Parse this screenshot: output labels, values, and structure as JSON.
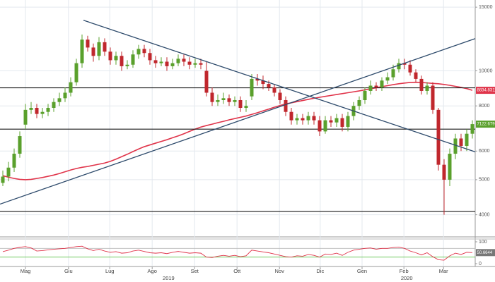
{
  "chart_data": [
    {
      "type": "candlestick",
      "xlim": [
        -0.5,
        83.5
      ],
      "xticks": [
        {
          "value": 4,
          "label": "Mag"
        },
        {
          "value": 11.6,
          "label": "Giu"
        },
        {
          "value": 18.9,
          "label": "Lug"
        },
        {
          "value": 26.4,
          "label": "Ago"
        },
        {
          "value": 33.9,
          "label": "Set"
        },
        {
          "value": 41.4,
          "label": "Ott"
        },
        {
          "value": 48.9,
          "label": "Nov"
        },
        {
          "value": 56.1,
          "label": "Dic"
        },
        {
          "value": 63.5,
          "label": "Gen"
        },
        {
          "value": 70.9,
          "label": "Feb"
        },
        {
          "value": 77.9,
          "label": "Mar"
        }
      ],
      "year_labels": [
        {
          "value": 29.3,
          "label": "2019"
        },
        {
          "value": 71.4,
          "label": "2020"
        }
      ],
      "ylim": [
        3490,
        15700
      ],
      "log_scale": true,
      "yticks": [
        4000,
        5000,
        6000,
        8000,
        10000,
        15000
      ],
      "grid": true,
      "up_color": "#5aa02c",
      "down_color": "#c0272d",
      "open": [
        4900,
        5100,
        5400,
        5900,
        7100,
        7800,
        7900,
        7600,
        7700,
        7900,
        8200,
        8400,
        8700,
        9300,
        10500,
        12200,
        11600,
        11000,
        12000,
        11300,
        10700,
        11000,
        10300,
        10400,
        11100,
        11500,
        11200,
        10700,
        10500,
        10600,
        10300,
        10500,
        10800,
        10600,
        10400,
        10500,
        10000,
        8700,
        8200,
        8300,
        8400,
        8200,
        8300,
        7900,
        8500,
        9500,
        9400,
        9200,
        9000,
        8700,
        8300,
        7700,
        7300,
        7400,
        7300,
        7500,
        7300,
        6800,
        7300,
        7200,
        7400,
        7000,
        7500,
        8000,
        8300,
        8800,
        9100,
        9000,
        9400,
        9600,
        10100,
        10500,
        10400,
        9900,
        9500,
        8800,
        9100,
        7800,
        5500,
        5000,
        5900,
        6500,
        6200,
        6700
      ],
      "high": [
        5300,
        5600,
        6100,
        6800,
        8100,
        8200,
        8100,
        7900,
        8100,
        8400,
        8700,
        9000,
        9600,
        10800,
        12600,
        12500,
        11900,
        12400,
        12300,
        11600,
        11300,
        11300,
        10700,
        11400,
        11800,
        11800,
        11500,
        11000,
        10900,
        10900,
        10800,
        11100,
        11100,
        10900,
        10800,
        10800,
        10600,
        9000,
        8600,
        8700,
        8600,
        8500,
        8500,
        8300,
        9800,
        9800,
        9700,
        9400,
        9200,
        8900,
        8500,
        7900,
        7600,
        7600,
        7700,
        7700,
        7500,
        7500,
        7500,
        7600,
        7600,
        7700,
        8200,
        8500,
        9000,
        9400,
        9300,
        9600,
        9900,
        10400,
        10800,
        10800,
        10700,
        10100,
        9700,
        9300,
        9300,
        7900,
        5700,
        6100,
        6700,
        6700,
        6900,
        7300
      ],
      "low": [
        4800,
        4950,
        5250,
        5750,
        6900,
        7600,
        7400,
        7400,
        7500,
        7700,
        8000,
        8200,
        8500,
        9100,
        10200,
        11300,
        10600,
        10700,
        11000,
        10400,
        10400,
        10000,
        10100,
        10200,
        10800,
        10900,
        10400,
        10200,
        10300,
        10000,
        10100,
        10300,
        10300,
        10100,
        10200,
        10100,
        8500,
        8000,
        8000,
        8100,
        8000,
        8000,
        7700,
        7700,
        8300,
        9100,
        8900,
        8800,
        8500,
        8100,
        7500,
        7100,
        7100,
        7100,
        7100,
        7100,
        6600,
        6700,
        7000,
        7000,
        6800,
        6800,
        7300,
        7800,
        8100,
        8600,
        8800,
        8800,
        9200,
        9400,
        9900,
        10100,
        9700,
        9300,
        8600,
        8600,
        7600,
        5300,
        4000,
        4800,
        5700,
        6000,
        6000,
        6500
      ],
      "close": [
        5100,
        5400,
        5900,
        6600,
        7800,
        7900,
        7600,
        7700,
        7900,
        8200,
        8400,
        8700,
        9300,
        10500,
        12200,
        11600,
        11000,
        12000,
        11300,
        10700,
        11000,
        10300,
        10400,
        11100,
        11500,
        11200,
        10700,
        10500,
        10600,
        10300,
        10500,
        10800,
        10600,
        10400,
        10500,
        10400,
        8700,
        8200,
        8300,
        8400,
        8200,
        8300,
        7900,
        8000,
        9500,
        9400,
        9200,
        9000,
        8700,
        8300,
        7700,
        7300,
        7400,
        7300,
        7500,
        7300,
        6800,
        7300,
        7200,
        7400,
        7000,
        7500,
        8000,
        8300,
        8800,
        9100,
        9000,
        9400,
        9600,
        10100,
        10500,
        10400,
        9900,
        9500,
        8800,
        9100,
        7800,
        5500,
        5000,
        5900,
        6500,
        6200,
        6700,
        7122.6791
      ],
      "moving_average": {
        "color": "#e0344a",
        "values": [
          5130,
          5080,
          5040,
          5010,
          5000,
          5010,
          5040,
          5070,
          5110,
          5150,
          5200,
          5260,
          5320,
          5370,
          5410,
          5440,
          5480,
          5520,
          5560,
          5620,
          5700,
          5790,
          5880,
          5980,
          6080,
          6170,
          6240,
          6310,
          6380,
          6450,
          6530,
          6610,
          6700,
          6800,
          6900,
          6990,
          7060,
          7120,
          7190,
          7250,
          7320,
          7380,
          7440,
          7500,
          7580,
          7660,
          7750,
          7840,
          7930,
          8020,
          8100,
          8160,
          8220,
          8280,
          8340,
          8400,
          8450,
          8500,
          8550,
          8600,
          8650,
          8700,
          8750,
          8800,
          8860,
          8920,
          8980,
          9040,
          9100,
          9160,
          9210,
          9250,
          9290,
          9300,
          9290,
          9260,
          9230,
          9210,
          9170,
          9120,
          9060,
          9000,
          8930,
          8834.8311
        ]
      },
      "levels": {
        "color": "#1a1a1a",
        "values": [
          8975,
          6900,
          4090
        ]
      },
      "trendlines": {
        "color": "#2d4a6b",
        "lines": [
          {
            "x": [
              14.25,
              83.5
            ],
            "y": [
              13800,
              5970
            ]
          },
          {
            "x": [
              -0.5,
              83.5
            ],
            "y": [
              4280,
              12280
            ]
          }
        ]
      }
    },
    {
      "type": "line",
      "xlim": [
        -0.5,
        83.5
      ],
      "ylim": [
        0,
        100
      ],
      "yticks": [
        0,
        100
      ],
      "color": "#e0344a",
      "levels": [
        30,
        70
      ],
      "level_colors": [
        "#5ec24a",
        "#b8b8b8"
      ],
      "values": [
        55,
        62,
        70,
        75,
        78,
        72,
        58,
        60,
        63,
        66,
        68,
        70,
        74,
        78,
        80,
        68,
        60,
        66,
        58,
        52,
        55,
        48,
        50,
        58,
        62,
        56,
        50,
        48,
        50,
        46,
        52,
        56,
        52,
        48,
        50,
        48,
        30,
        28,
        34,
        38,
        34,
        38,
        32,
        36,
        62,
        58,
        54,
        50,
        44,
        38,
        32,
        30,
        36,
        34,
        42,
        38,
        30,
        44,
        42,
        48,
        38,
        52,
        62,
        66,
        70,
        72,
        66,
        70,
        70,
        74,
        76,
        70,
        58,
        50,
        40,
        50,
        32,
        18,
        16,
        36,
        48,
        42,
        52,
        50.6644
      ]
    }
  ]
}
